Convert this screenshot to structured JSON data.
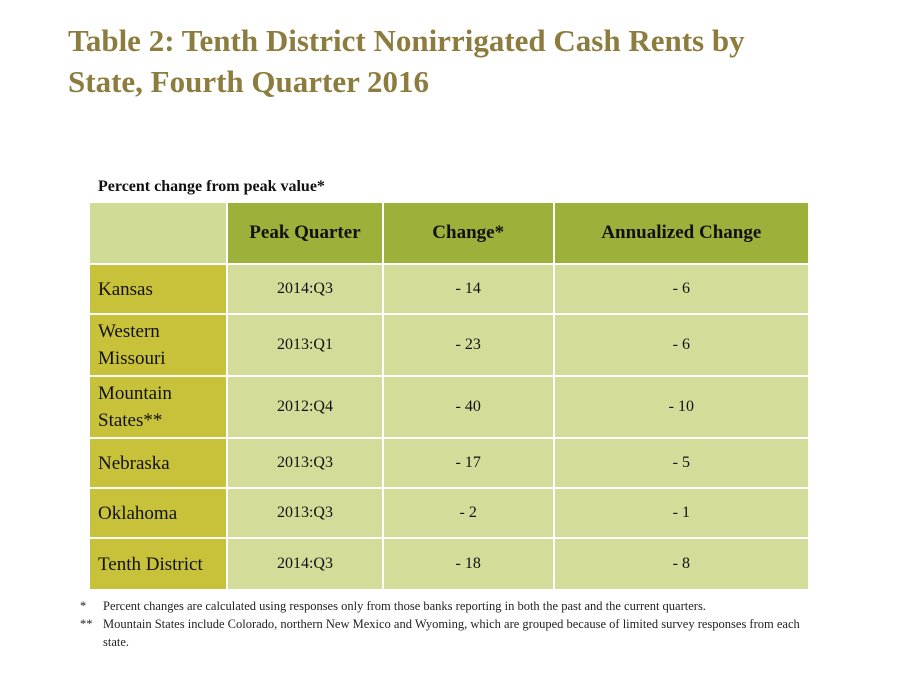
{
  "title": "Table 2: Tenth District Nonirrigated Cash Rents by State, Fourth Quarter 2016",
  "subtitle": "Percent change from peak value*",
  "headers": [
    "",
    "Peak Quarter",
    "Change*",
    "Annualized Change"
  ],
  "rows": [
    {
      "state": "Kansas",
      "peak": "2014:Q3",
      "change": "- 14",
      "annual": "- 6"
    },
    {
      "state": "Western Missouri",
      "peak": "2013:Q1",
      "change": "- 23",
      "annual": "- 6"
    },
    {
      "state": "Mountain States**",
      "peak": "2012:Q4",
      "change": "- 40",
      "annual": "- 10"
    },
    {
      "state": "Nebraska",
      "peak": "2013:Q3",
      "change": "- 17",
      "annual": "- 5"
    },
    {
      "state": "Oklahoma",
      "peak": "2013:Q3",
      "change": "- 2",
      "annual": "- 1"
    },
    {
      "state": "Tenth District",
      "peak": "2014:Q3",
      "change": "- 18",
      "annual": "- 8"
    }
  ],
  "notes": [
    {
      "marker": "*",
      "text": "Percent changes are calculated using responses only from those banks reporting in both the past and the current quarters."
    },
    {
      "marker": "**",
      "text": "Mountain States include Colorado, northern New Mexico and Wyoming, which are grouped because of limited survey responses from each state."
    }
  ]
}
